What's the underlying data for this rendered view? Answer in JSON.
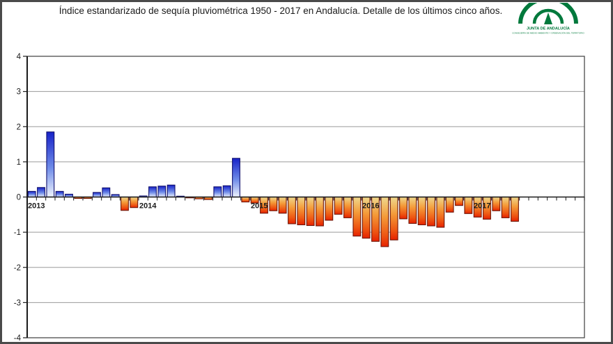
{
  "header": {
    "title": "Índice estandarizado de sequía pluviométrica 1950 - 2017 en Andalucía. Detalle de los últimos cinco años."
  },
  "logo": {
    "org": "JUNTA DE ANDALUCÍA",
    "department": "CONSEJERÍA DE MEDIO AMBIENTE Y ORDENACIÓN DEL TERRITORIO",
    "color": "#00793c"
  },
  "chart_data": {
    "type": "bar",
    "title": "Índice estandarizado de sequía pluviométrica 1950 - 2017 en Andalucía. Detalle de los últimos cinco años",
    "xlabel": "",
    "ylabel": "Índice estandarizado de sequía pluviométrica",
    "ylim": [
      -4,
      4
    ],
    "yticks": [
      "4",
      "3",
      "2",
      "1",
      "0",
      "-1",
      "-2",
      "-3",
      "-4"
    ],
    "ytick_values": [
      4,
      3,
      2,
      1,
      0,
      -1,
      -2,
      -3,
      -4
    ],
    "grid": "horizontal-on",
    "legend": "none",
    "x_axis_span_months": 60,
    "x_range": "Jan 2013 - Dec 2017 (data plotted through May 2017)",
    "years": [
      "2013",
      "2014",
      "2015",
      "2016",
      "2017"
    ],
    "month_values_by_year": {
      "2013": [
        0.16,
        0.27,
        1.85,
        0.16,
        0.08,
        -0.04,
        -0.04,
        0.13,
        0.26,
        0.07,
        -0.38,
        -0.3
      ],
      "2014": [
        0.03,
        0.29,
        0.31,
        0.34,
        0.01,
        -0.02,
        -0.05,
        -0.07,
        0.29,
        0.32,
        1.1,
        -0.14
      ],
      "2015": [
        -0.17,
        -0.46,
        -0.39,
        -0.46,
        -0.76,
        -0.79,
        -0.81,
        -0.82,
        -0.66,
        -0.49,
        -0.59,
        -1.11
      ],
      "2016": [
        -1.17,
        -1.26,
        -1.41,
        -1.22,
        -0.62,
        -0.75,
        -0.79,
        -0.82,
        -0.86,
        -0.43,
        -0.24,
        -0.47
      ],
      "2017": [
        -0.57,
        -0.63,
        -0.39,
        -0.59,
        -0.69
      ]
    },
    "colors": {
      "positive_bar_top": "#1722c8",
      "positive_bar_mid": "#6f8ce8",
      "positive_bar_bottom": "#eef3fd",
      "positive_bar_border": "#10106e",
      "negative_bar_top": "#efd98e",
      "negative_bar_mid": "#f49a38",
      "negative_bar_bottom": "#e62200",
      "negative_bar_border": "#6e1507",
      "gridline": "#9a9a9a",
      "zero_axis": "#1a1a1a",
      "plot_border": "#3c3c3c",
      "tick_label": "#1a1a1a"
    }
  }
}
